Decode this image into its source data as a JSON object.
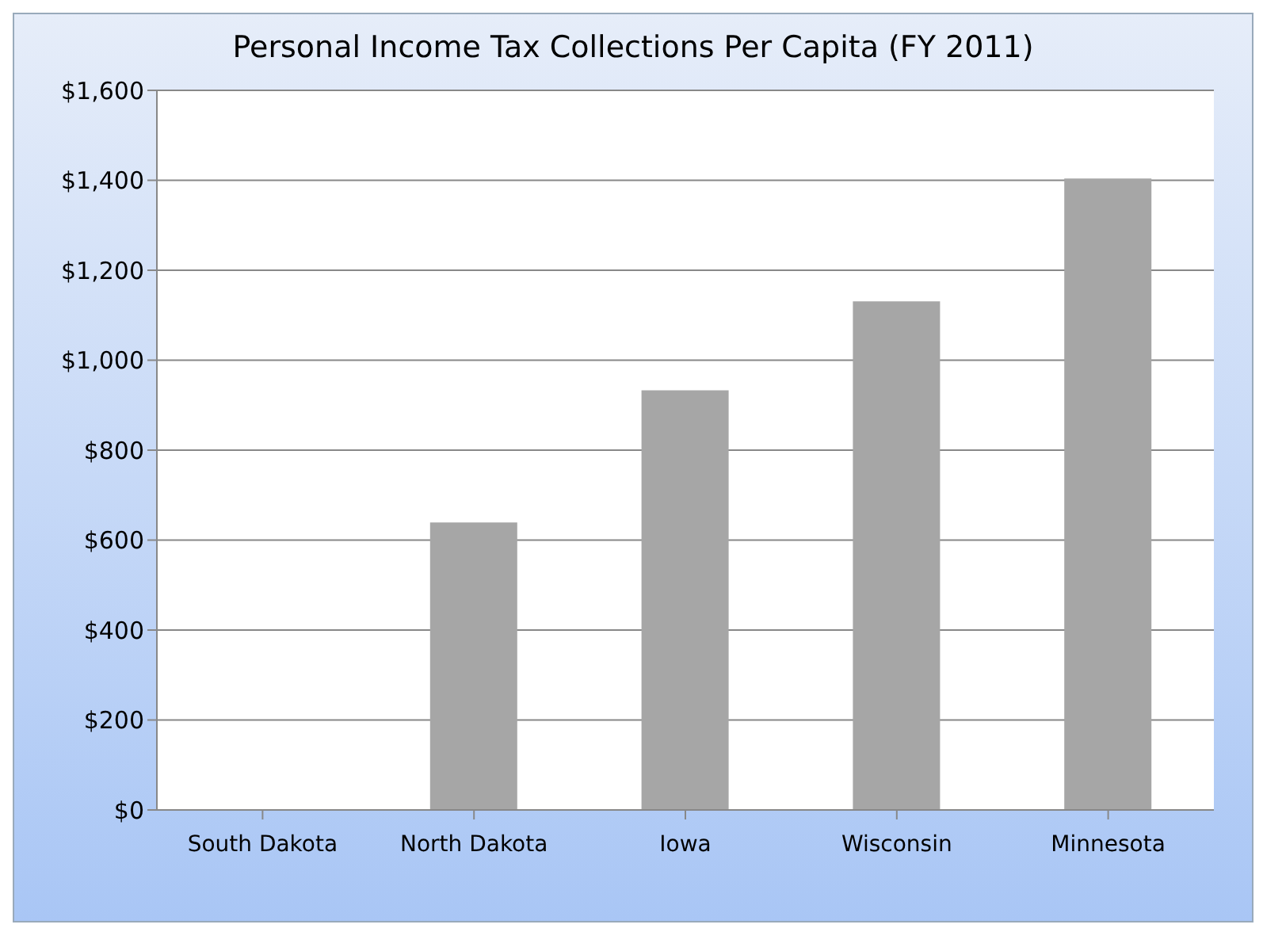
{
  "chart_data": {
    "type": "bar",
    "title": "Personal Income Tax Collections Per Capita (FY 2011)",
    "categories": [
      "South Dakota",
      "North Dakota",
      "Iowa",
      "Wisconsin",
      "Minnesota"
    ],
    "values": [
      0,
      639,
      933,
      1131,
      1404
    ],
    "color": "#a6a6a6",
    "ylim": [
      0,
      1600
    ],
    "yticks": [
      {
        "value": 0,
        "label": "$0"
      },
      {
        "value": 200,
        "label": "$200"
      },
      {
        "value": 400,
        "label": "$400"
      },
      {
        "value": 600,
        "label": "$600"
      },
      {
        "value": 800,
        "label": "$800"
      },
      {
        "value": 1000,
        "label": "$1,000"
      },
      {
        "value": 1200,
        "label": "$1,200"
      },
      {
        "value": 1400,
        "label": "$1,400"
      },
      {
        "value": 1600,
        "label": "$1,600"
      }
    ],
    "grid": "y"
  }
}
